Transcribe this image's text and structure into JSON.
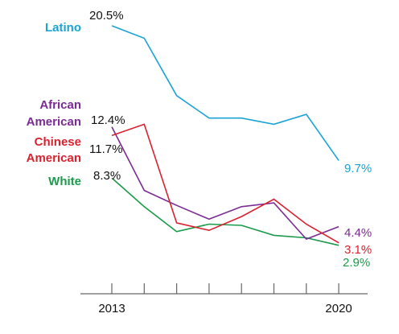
{
  "chart_data": {
    "type": "line",
    "x": [
      2013,
      2014,
      2015,
      2016,
      2017,
      2018,
      2019,
      2020
    ],
    "x_tick_labels": [
      "2013",
      "2020"
    ],
    "series": [
      {
        "name": "Latino",
        "label_lines": [
          "Latino"
        ],
        "color": "#1aa3d4",
        "values": [
          20.5,
          19.5,
          14.9,
          13.1,
          13.1,
          12.6,
          13.4,
          9.7
        ],
        "start_label": "20.5%",
        "end_label": "9.7%"
      },
      {
        "name": "African American",
        "label_lines": [
          "African",
          "American"
        ],
        "color": "#7b2b94",
        "values": [
          12.4,
          7.3,
          6.1,
          5.0,
          6.0,
          6.3,
          3.4,
          4.4
        ],
        "start_label": "12.4%",
        "end_label": "4.4%"
      },
      {
        "name": "Chinese American",
        "label_lines": [
          "Chinese",
          "American"
        ],
        "color": "#d9222e",
        "values": [
          11.7,
          12.6,
          4.7,
          4.1,
          5.2,
          6.6,
          4.6,
          3.1
        ],
        "start_label": "11.7%",
        "end_label": "3.1%"
      },
      {
        "name": "White",
        "label_lines": [
          "White"
        ],
        "color": "#1a9a4a",
        "values": [
          8.3,
          6.0,
          4.0,
          4.6,
          4.5,
          3.7,
          3.5,
          2.9
        ],
        "start_label": "8.3%",
        "end_label": "2.9%"
      }
    ],
    "axis_color": "#666666"
  }
}
